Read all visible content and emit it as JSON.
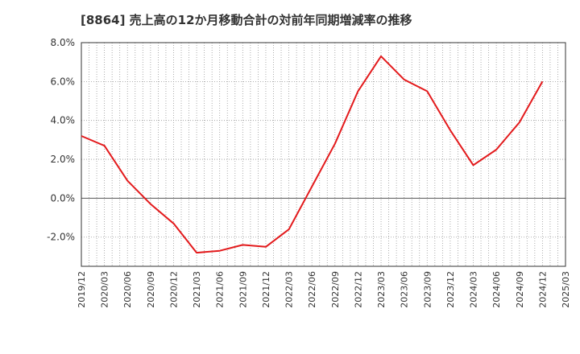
{
  "chart_data": {
    "type": "line",
    "title": "[8864]  売上高の12か月移動合計の対前年同期増減率の推移",
    "xlabel": "",
    "ylabel": "",
    "ylim": [
      -3.5,
      8.0
    ],
    "yticks": [
      8.0,
      6.0,
      4.0,
      2.0,
      0.0,
      -2.0
    ],
    "ytick_labels": [
      "8.0%",
      "6.0%",
      "4.0%",
      "2.0%",
      "0.0%",
      "-2.0%"
    ],
    "x": [
      "2019/12",
      "2020/03",
      "2020/06",
      "2020/09",
      "2020/12",
      "2021/03",
      "2021/06",
      "2021/09",
      "2021/12",
      "2022/03",
      "2022/06",
      "2022/09",
      "2022/12",
      "2023/03",
      "2023/06",
      "2023/09",
      "2023/12",
      "2024/03",
      "2024/06",
      "2024/09",
      "2024/12",
      "2025/03"
    ],
    "series": [
      {
        "name": "対前年同期増減率",
        "color": "#e31a1c",
        "values": [
          3.2,
          2.7,
          0.9,
          -0.3,
          -1.3,
          -2.8,
          -2.7,
          -2.4,
          -2.5,
          -1.6,
          0.6,
          2.8,
          5.5,
          7.3,
          6.1,
          5.5,
          3.5,
          1.7,
          2.5,
          3.9,
          6.0,
          null
        ]
      }
    ],
    "grid": true
  }
}
